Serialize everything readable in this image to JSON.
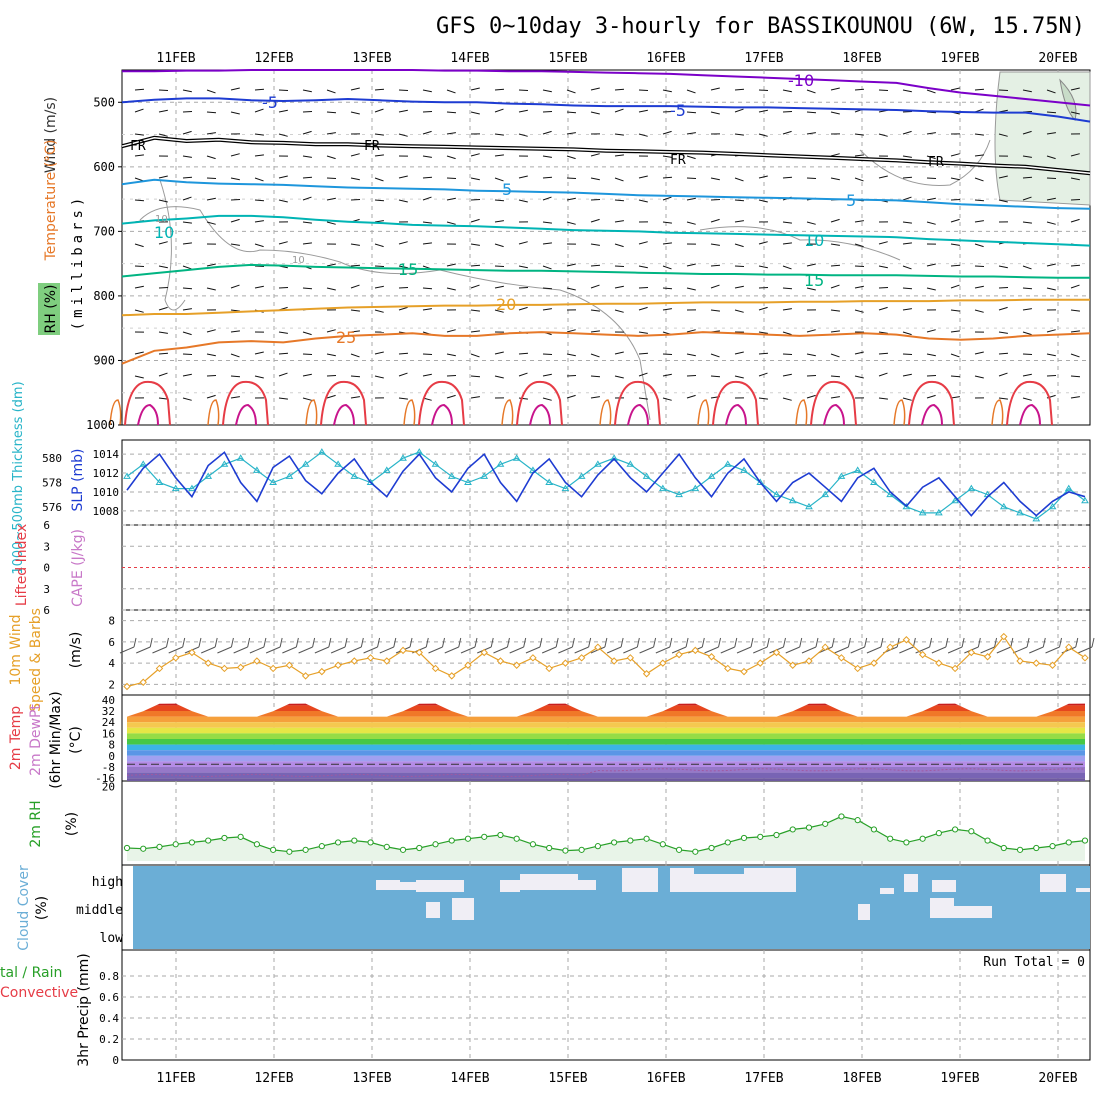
{
  "title": "GFS 0~10day 3-hourly for BASSIKOUNOU (6W, 15.75N)",
  "dates": [
    "11FEB",
    "12FEB",
    "13FEB",
    "14FEB",
    "15FEB",
    "16FEB",
    "17FEB",
    "18FEB",
    "19FEB",
    "20FEB"
  ],
  "colors": {
    "grid": "#aaaaaa",
    "purple": "#7b00c8",
    "blue": "#1e3cd2",
    "black": "#000000",
    "lightblue": "#1e96dc",
    "teal": "#00b4b4",
    "green": "#00b482",
    "orange": "#e6a028",
    "darkorange": "#e67828",
    "red": "#e63c46",
    "magenta": "#c8148c",
    "slp": "#1e3cd2",
    "thick": "#28b4c8",
    "wind": "#e6a028",
    "rh": "#28a028",
    "rhfill": "#e8f4e8",
    "cloud": "#6baed6",
    "cloudgap": "#f0eef5"
  },
  "panel_labels": {
    "wind": "Wind (m/s)",
    "temp": "Temperature (°C)",
    "rh": "RH (%)",
    "mb": "(millibars)",
    "thick": "1000~500mb Thickness (dm)",
    "slp": "SLP (mb)",
    "lifted": "Lifted Index",
    "cape": "CAPE (J/kg)",
    "w10a": "10m Wind",
    "w10b": "Speed & Barbs",
    "w10u": "(m/s)",
    "t2a": "2m Temp",
    "t2b": "2m DewPt",
    "t2c": "(6hr Min/Max)",
    "t2u": "(°C)",
    "rh2": "2m RH",
    "rh2u": "(%)",
    "cloud": "Cloud Cover",
    "cloudu": "(%)",
    "precipA": "tal / Rain",
    "precipB": "Convective",
    "precipC": "3hr Precip (mm)",
    "runtotal": "Run Total = 0"
  },
  "contour_labels": {
    "m10": "-10",
    "m5": "-5",
    "fr": "FR",
    "p5": "5",
    "p10": "10",
    "p15": "15",
    "p20": "20",
    "p25": "25",
    "rh10": "10"
  },
  "chart_data": [
    {
      "type": "line",
      "name": "sounding",
      "yticks": [
        500,
        600,
        700,
        800,
        900,
        1000
      ],
      "ylim": [
        450,
        1000
      ],
      "isotherms": [
        {
          "value": "-10",
          "level": [
            452,
            452,
            451,
            451,
            450,
            450,
            450,
            450,
            450,
            450,
            451,
            451,
            452,
            452,
            453,
            454,
            455,
            456,
            458,
            460,
            462,
            464,
            466,
            468,
            470,
            478,
            485,
            490,
            495,
            500,
            505
          ]
        },
        {
          "value": "-5",
          "level": [
            500,
            496,
            494,
            494,
            497,
            498,
            497,
            495,
            497,
            499,
            500,
            500,
            502,
            503,
            505,
            506,
            506,
            506,
            507,
            508,
            508,
            509,
            510,
            511,
            512,
            514,
            515,
            516,
            516,
            522,
            530
          ]
        },
        {
          "value": "0",
          "level": [
            568,
            555,
            560,
            558,
            562,
            563,
            565,
            565,
            567,
            568,
            569,
            570,
            571,
            572,
            573,
            575,
            576,
            577,
            578,
            580,
            582,
            584,
            586,
            588,
            590,
            593,
            595,
            598,
            600,
            605,
            610
          ]
        },
        {
          "value": "5",
          "level": [
            627,
            620,
            624,
            626,
            627,
            628,
            630,
            632,
            633,
            634,
            635,
            637,
            638,
            639,
            640,
            642,
            644,
            645,
            646,
            647,
            648,
            649,
            650,
            651,
            652,
            655,
            658,
            660,
            662,
            664,
            665
          ]
        },
        {
          "value": "10",
          "level": [
            688,
            683,
            680,
            676,
            676,
            678,
            682,
            685,
            687,
            690,
            691,
            692,
            694,
            696,
            698,
            699,
            700,
            702,
            703,
            704,
            705,
            706,
            707,
            708,
            709,
            712,
            714,
            716,
            718,
            720,
            722
          ]
        },
        {
          "value": "15",
          "level": [
            770,
            765,
            760,
            755,
            752,
            753,
            755,
            756,
            757,
            758,
            759,
            760,
            761,
            761,
            762,
            763,
            764,
            765,
            766,
            766,
            767,
            767,
            768,
            768,
            768,
            769,
            770,
            770,
            771,
            772,
            772
          ]
        },
        {
          "value": "20",
          "level": [
            830,
            828,
            828,
            826,
            824,
            822,
            820,
            818,
            817,
            816,
            815,
            815,
            814,
            814,
            813,
            812,
            812,
            811,
            810,
            810,
            810,
            809,
            809,
            808,
            808,
            808,
            807,
            807,
            806,
            806,
            806
          ]
        },
        {
          "value": "25",
          "level": [
            905,
            885,
            880,
            872,
            870,
            872,
            866,
            862,
            860,
            858,
            862,
            862,
            858,
            856,
            858,
            860,
            862,
            860,
            856,
            858,
            860,
            862,
            860,
            858,
            860,
            866,
            868,
            866,
            862,
            860,
            858
          ]
        }
      ]
    },
    {
      "type": "line",
      "name": "slp_thickness",
      "yticks_left": [
        576,
        578,
        580
      ],
      "yticks_right": [
        1008,
        1010,
        1012,
        1014
      ],
      "series": [
        {
          "name": "SLP (mb)",
          "values": [
            1010.2,
            1012.5,
            1014.0,
            1011.5,
            1009.5,
            1012.8,
            1014.2,
            1011.0,
            1009.0,
            1012.6,
            1013.8,
            1011.2,
            1009.8,
            1012.0,
            1013.5,
            1011.0,
            1009.5,
            1012.2,
            1014.0,
            1011.5,
            1010.0,
            1012.5,
            1014.0,
            1011.0,
            1009.0,
            1012.0,
            1013.5,
            1011.0,
            1009.5,
            1011.8,
            1013.5,
            1011.5,
            1010.0,
            1012.0,
            1014.0,
            1011.5,
            1009.5,
            1012.0,
            1013.5,
            1011.0,
            1009.0,
            1011.0,
            1012.0,
            1010.5,
            1009.0,
            1011.5,
            1012.5,
            1010.0,
            1008.5,
            1010.5,
            1011.5,
            1009.5,
            1007.5,
            1009.5,
            1011.0,
            1009.0,
            1007.5,
            1009.0,
            1010.0,
            1009.5
          ]
        },
        {
          "name": "1000~500mb Thickness (dm)",
          "values": [
            578.5,
            579.5,
            578.0,
            577.5,
            577.5,
            578.5,
            579.5,
            580.0,
            579.0,
            578.0,
            578.5,
            579.5,
            580.5,
            579.5,
            578.5,
            578.0,
            579.0,
            580.0,
            580.5,
            579.5,
            578.5,
            578.0,
            578.5,
            579.5,
            580.0,
            579.0,
            578.0,
            577.5,
            578.5,
            579.5,
            580.0,
            579.5,
            578.5,
            577.5,
            577.0,
            577.5,
            578.5,
            579.5,
            579.0,
            578.0,
            577.0,
            576.5,
            576.0,
            577.0,
            578.5,
            579.0,
            578.0,
            577.0,
            576.0,
            575.5,
            575.5,
            576.5,
            577.5,
            577.0,
            576.0,
            575.5,
            575.0,
            576.0,
            577.5,
            576.5
          ]
        }
      ]
    },
    {
      "type": "line",
      "name": "lifted_cape",
      "yticks": [
        -6,
        -3,
        0,
        3,
        6
      ],
      "ylim": [
        6,
        -6
      ]
    },
    {
      "type": "line",
      "name": "wind10m",
      "yticks": [
        2,
        4,
        6,
        8
      ],
      "ylim": [
        1,
        9
      ],
      "series": [
        {
          "name": "10m Wind Speed",
          "values": [
            1.8,
            2.2,
            3.5,
            4.5,
            5.0,
            4.0,
            3.5,
            3.6,
            4.2,
            3.5,
            3.8,
            2.8,
            3.2,
            3.8,
            4.2,
            4.5,
            4.2,
            5.2,
            5.0,
            3.5,
            2.8,
            3.8,
            5.0,
            4.2,
            3.8,
            4.5,
            3.5,
            4.0,
            4.5,
            5.5,
            4.2,
            4.5,
            3.0,
            4.0,
            4.8,
            5.2,
            4.6,
            3.5,
            3.2,
            4.0,
            5.0,
            3.8,
            4.2,
            5.5,
            4.5,
            3.5,
            4.0,
            5.5,
            6.2,
            4.8,
            4.0,
            3.5,
            5.0,
            4.6,
            6.5,
            4.2,
            4.0,
            3.8,
            5.5,
            4.5
          ]
        }
      ]
    },
    {
      "type": "area",
      "name": "temp2m",
      "yticks": [
        -16,
        -8,
        0,
        8,
        16,
        24,
        32,
        40
      ],
      "ylim": [
        -18,
        42
      ]
    },
    {
      "type": "line",
      "name": "rh2m",
      "yticks": [
        20
      ],
      "ylim": [
        0,
        21
      ],
      "series": [
        {
          "name": "2m RH",
          "values": [
            3.5,
            3.3,
            3.8,
            4.5,
            5.0,
            5.5,
            6.2,
            6.5,
            4.5,
            3.0,
            2.5,
            3.0,
            4.0,
            5.0,
            5.5,
            5.0,
            3.8,
            3.0,
            3.5,
            4.5,
            5.5,
            6.0,
            6.5,
            7.0,
            6.0,
            4.5,
            3.5,
            2.8,
            3.0,
            4.0,
            5.0,
            5.5,
            6.0,
            4.5,
            3.0,
            2.5,
            3.5,
            5.0,
            6.2,
            6.5,
            7.0,
            8.5,
            9.0,
            10.0,
            12.0,
            11.0,
            8.5,
            6.0,
            5.0,
            6.0,
            7.5,
            8.5,
            8.0,
            5.5,
            3.5,
            3.0,
            3.5,
            4.0,
            5.0,
            5.5
          ]
        }
      ]
    },
    {
      "type": "heatmap",
      "name": "cloud",
      "categories": [
        "high",
        "middle",
        "low"
      ]
    },
    {
      "type": "bar",
      "name": "precip",
      "yticks": [
        0,
        0.2,
        0.4,
        0.6,
        0.8
      ],
      "ylim": [
        0,
        1
      ],
      "values": []
    }
  ]
}
